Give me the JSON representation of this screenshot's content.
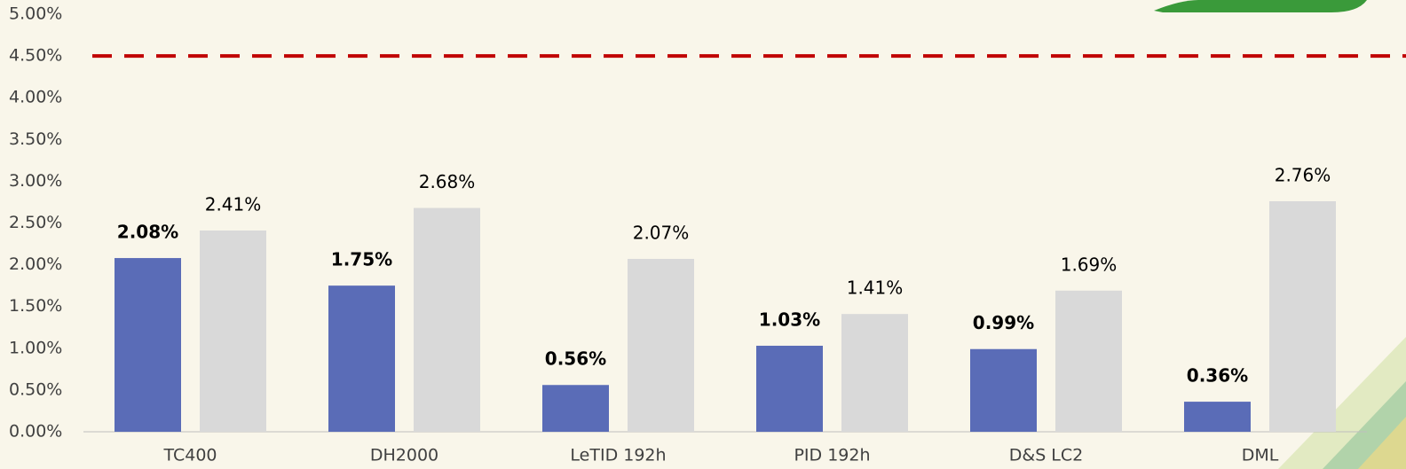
{
  "chart_data": {
    "type": "bar",
    "categories": [
      "TC400",
      "DH2000",
      "LeTID 192h",
      "PID 192h",
      "D&S LC2",
      "DML"
    ],
    "series": [
      {
        "color": "#5a6cb7",
        "values": [
          2.08,
          1.75,
          0.56,
          1.03,
          0.99,
          0.36
        ],
        "value_labels": [
          "2.08%",
          "1.75%",
          "0.56%",
          "1.03%",
          "0.99%",
          "0.36%"
        ]
      },
      {
        "color": "#d9d9d9",
        "values": [
          2.41,
          2.68,
          2.07,
          1.41,
          1.69,
          2.76
        ],
        "value_labels": [
          "2.41%",
          "2.68%",
          "2.07%",
          "1.41%",
          "1.69%",
          "2.76%"
        ]
      }
    ],
    "ylim": [
      0,
      5
    ],
    "yticks": [
      {
        "value": 0,
        "label": "0.00%"
      },
      {
        "value": 0.5,
        "label": "0.50%"
      },
      {
        "value": 1,
        "label": "1.00%"
      },
      {
        "value": 1.5,
        "label": "1.50%"
      },
      {
        "value": 2,
        "label": "2.00%"
      },
      {
        "value": 2.5,
        "label": "2.50%"
      },
      {
        "value": 3,
        "label": "3.00%"
      },
      {
        "value": 3.5,
        "label": "3.50%"
      },
      {
        "value": 4,
        "label": "4.00%"
      },
      {
        "value": 4.5,
        "label": "4.50%"
      },
      {
        "value": 5,
        "label": "5.00%"
      }
    ],
    "grid": false,
    "reference_line": {
      "value": 4.5,
      "color": "#c00000",
      "dashed": true
    }
  }
}
